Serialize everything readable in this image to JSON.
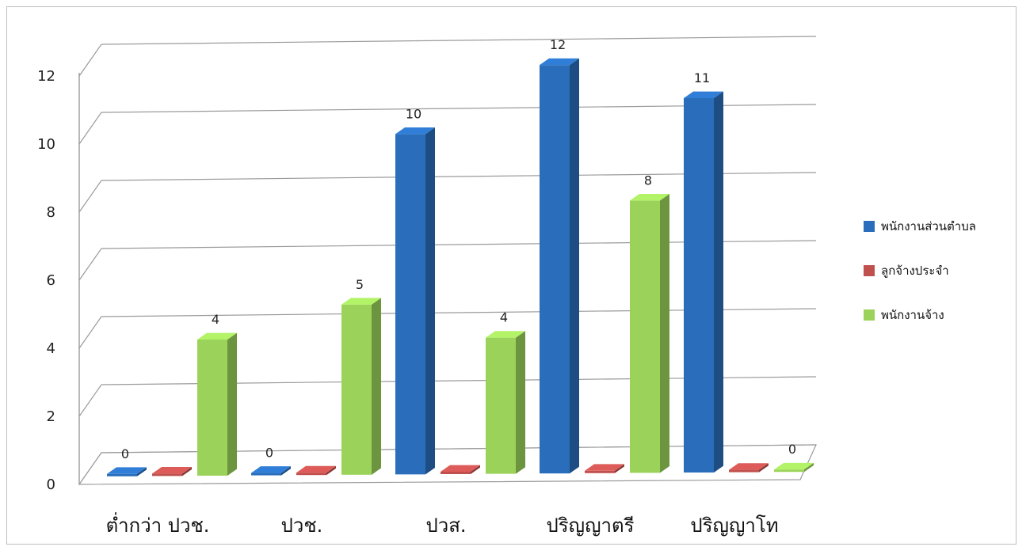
{
  "chart_data": {
    "type": "bar",
    "categories": [
      "ต่ำกว่า ปวช.",
      "ปวช.",
      "ปวส.",
      "ปริญญาตรี",
      "ปริญญาโท"
    ],
    "series": [
      {
        "name": "พนักงานส่วนตำบล",
        "values": [
          0,
          0,
          10,
          12,
          11
        ],
        "color": "#2a6ebb",
        "labels": [
          "0",
          "0",
          "10",
          "12",
          "11"
        ]
      },
      {
        "name": "ลูกจ้างประจำ",
        "values": [
          0,
          0,
          0,
          0,
          0
        ],
        "color": "#c0504d",
        "labels": [
          "",
          "",
          "",
          "",
          ""
        ]
      },
      {
        "name": "พนักงานจ้าง",
        "values": [
          4,
          5,
          4,
          8,
          0
        ],
        "color": "#9bd35a",
        "labels": [
          "4",
          "5",
          "4",
          "8",
          "0"
        ]
      }
    ],
    "y_ticks": [
      "0",
      "2",
      "4",
      "6",
      "8",
      "10",
      "12"
    ],
    "ylim": [
      0,
      12
    ],
    "grid": true,
    "legend_position": "right",
    "style": "3d-clustered-column"
  }
}
